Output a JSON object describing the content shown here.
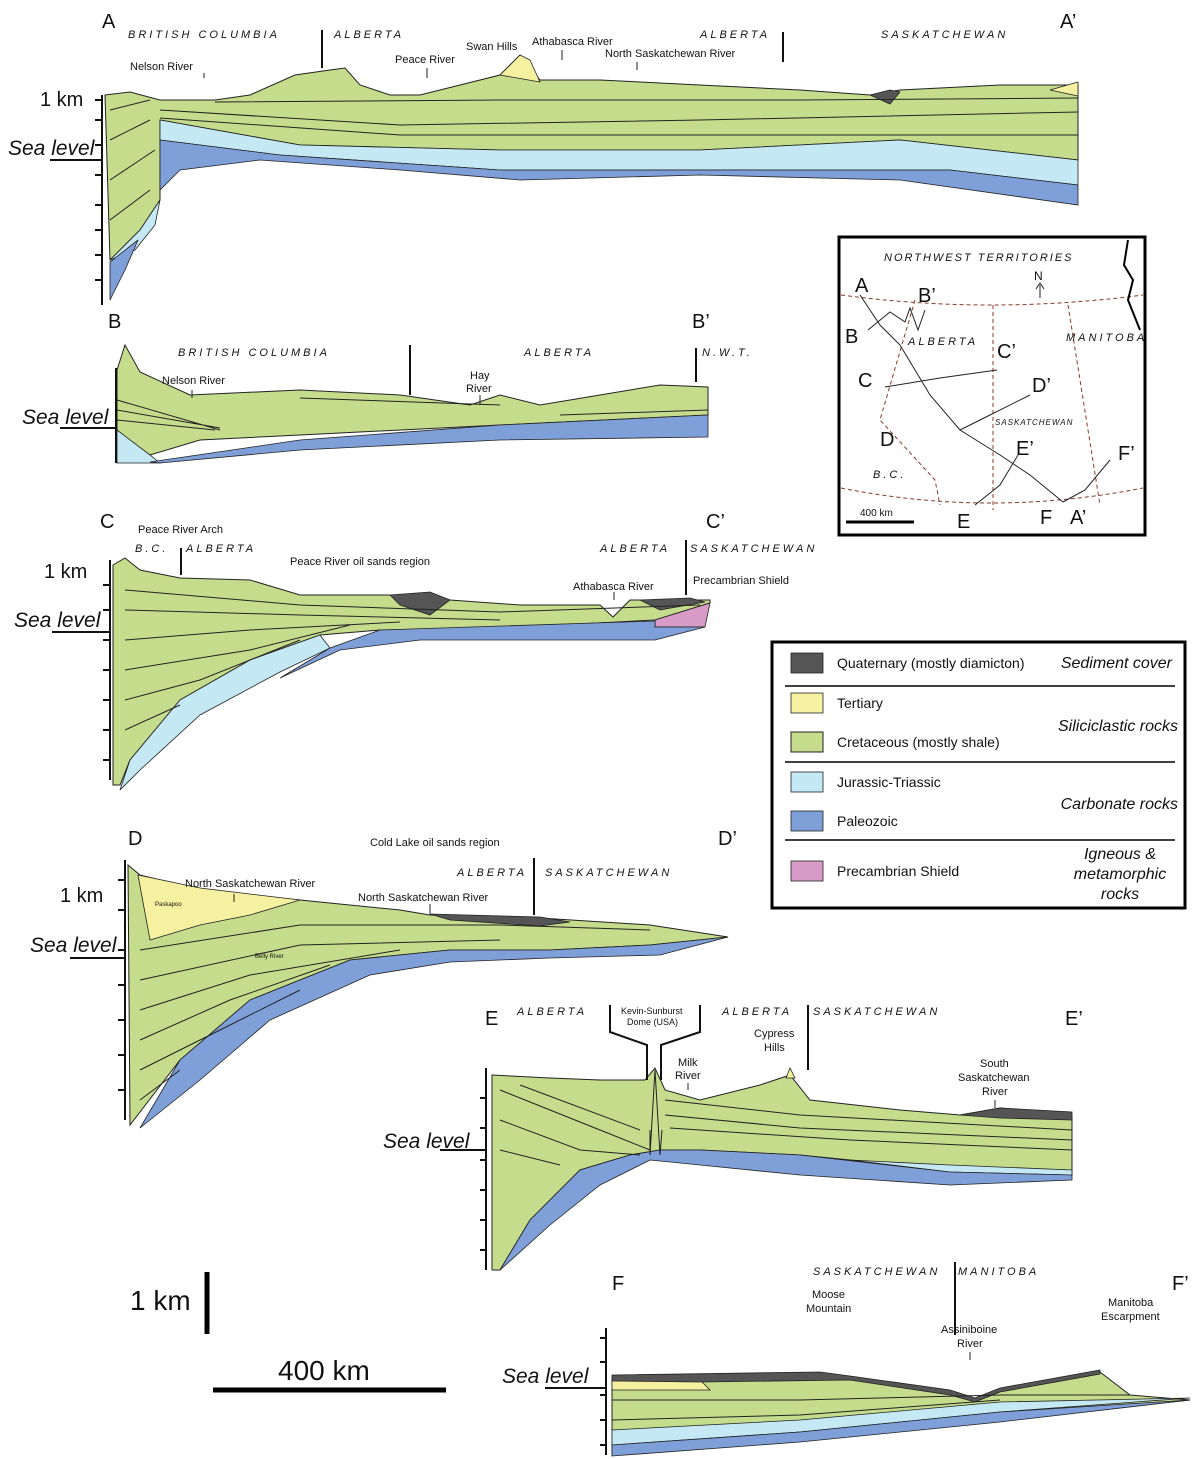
{
  "sections": [
    {
      "start": "A",
      "end": "A’",
      "km": "1 km",
      "sea": "Sea level",
      "provinces": [
        "BRITISH COLUMBIA",
        "ALBERTA",
        "ALBERTA",
        "SASKATCHEWAN"
      ],
      "features": [
        "Nelson River",
        "Peace River",
        "Swan Hills",
        "Athabasca River",
        "North Saskatchewan River"
      ]
    },
    {
      "start": "B",
      "end": "B’",
      "sea": "Sea level",
      "provinces": [
        "BRITISH COLUMBIA",
        "ALBERTA",
        "N.W.T."
      ],
      "features": [
        "Nelson River",
        [
          "Hay",
          "River"
        ]
      ]
    },
    {
      "start": "C",
      "end": "C’",
      "km": "1 km",
      "sea": "Sea level",
      "provinces": [
        "B.C.",
        "ALBERTA",
        "ALBERTA",
        "SASKATCHEWAN"
      ],
      "features": [
        "Peace River Arch",
        "Peace River oil sands region",
        "Athabasca River",
        "Precambrian Shield"
      ]
    },
    {
      "start": "D",
      "end": "D’",
      "km": "1 km",
      "sea": "Sea level",
      "provinces": [
        "ALBERTA",
        "SASKATCHEWAN"
      ],
      "features": [
        "Cold Lake oil sands region",
        "North Saskatchewan River",
        "North Saskatchewan River"
      ],
      "units": [
        "Paskapoo",
        "Belly River"
      ]
    },
    {
      "start": "E",
      "end": "E’",
      "sea": "Sea level",
      "provinces": [
        "ALBERTA",
        "ALBERTA",
        "SASKATCHEWAN"
      ],
      "features": [
        [
          "Kevin-Sunburst",
          "Dome (USA)"
        ],
        [
          "Milk",
          "River"
        ],
        [
          "Cypress",
          "Hills"
        ],
        [
          "South",
          "Saskatchewan",
          "River"
        ]
      ]
    },
    {
      "start": "F",
      "end": "F’",
      "sea": "Sea level",
      "provinces": [
        "SASKATCHEWAN",
        "MANITOBA"
      ],
      "features": [
        [
          "Moose",
          "Mountain"
        ],
        [
          "Assiniboine",
          "River"
        ],
        [
          "Manitoba",
          "Escarpment"
        ]
      ]
    }
  ],
  "scale": {
    "vertical": "1 km",
    "horizontal": "400 km"
  },
  "map": {
    "title": "NORTHWEST TERRITORIES",
    "north": "N",
    "provinces": [
      "ALBERTA",
      "MANITOBA",
      "SASKATCHEWAN",
      "B.C."
    ],
    "points": [
      "A",
      "B’",
      "B",
      "C’",
      "C",
      "D’",
      "D",
      "E’",
      "F’",
      "E",
      "F",
      "A’"
    ],
    "scale": "400 km"
  },
  "legend": {
    "rows": [
      "Quaternary (mostly diamicton)",
      "Tertiary",
      "Cretaceous (mostly shale)",
      "Jurassic-Triassic",
      "Paleozoic",
      "Precambrian Shield"
    ],
    "groups": [
      "Sediment cover",
      "Siliciclastic rocks",
      "Carbonate rocks",
      [
        "Igneous &",
        "metamorphic",
        "rocks"
      ]
    ]
  }
}
